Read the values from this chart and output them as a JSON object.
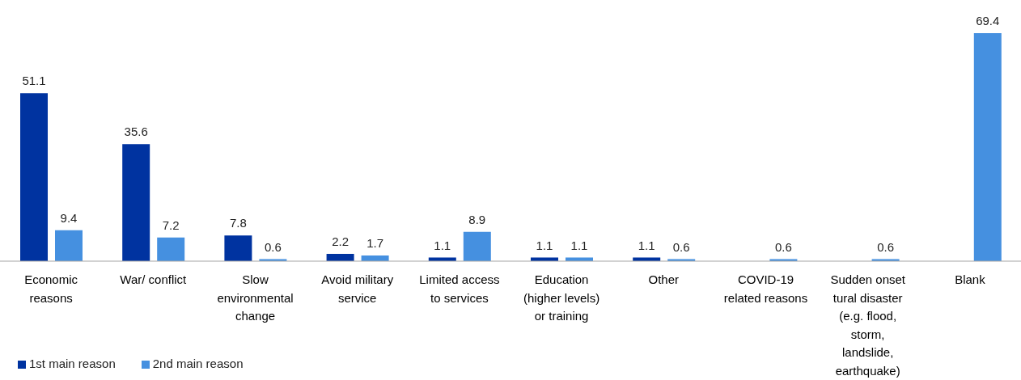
{
  "chart_data": {
    "type": "bar",
    "categories": [
      "Economic reasons",
      "War/ conflict",
      "Slow environmental change",
      "Avoid military service",
      "Limited access to services",
      "Education (higher levels) or training",
      "Other",
      "COVID-19 related reasons",
      "Sudden onset tural disaster (e.g. flood, storm, landslide, earthquake)",
      "Blank"
    ],
    "series": [
      {
        "name": "1st main reason",
        "color": "#0033a0",
        "values": [
          51.1,
          35.6,
          7.8,
          2.2,
          1.1,
          1.1,
          1.1,
          null,
          null,
          null
        ]
      },
      {
        "name": "2nd main reason",
        "color": "#4590e0",
        "values": [
          9.4,
          7.2,
          0.6,
          1.7,
          8.9,
          1.1,
          0.6,
          0.6,
          0.6,
          69.4
        ]
      }
    ],
    "data_labels": true,
    "legend": "bottom left",
    "tick_labels": "x"
  }
}
